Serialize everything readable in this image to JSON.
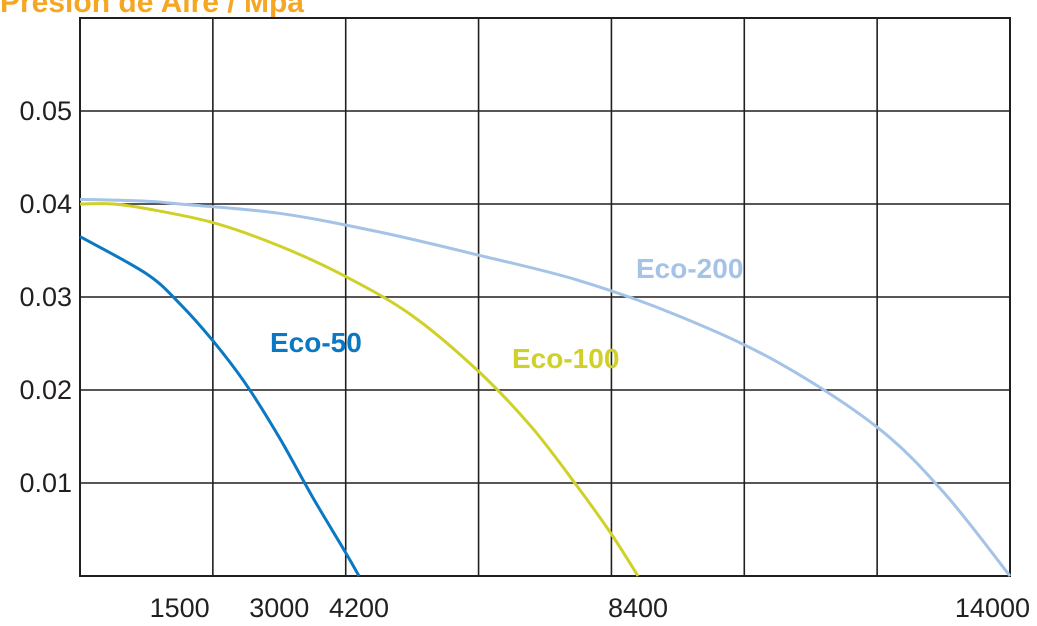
{
  "title": "Presión de Aire / Mpa",
  "chart_data": {
    "type": "line",
    "title": "Presión de Aire / Mpa",
    "xlabel": "",
    "ylabel": "",
    "xlim": [
      0,
      14000
    ],
    "ylim": [
      0,
      0.06
    ],
    "grid": true,
    "y_ticks": [
      "0.01",
      "0.02",
      "0.03",
      "0.04",
      "0.05"
    ],
    "x_ticks": [
      "1500",
      "3000",
      "4200",
      "8400",
      "14000"
    ],
    "series": [
      {
        "name": "Eco-50",
        "color": "#0a78c2",
        "x": [
          0,
          1000,
          1500,
          2000,
          2500,
          3000,
          3500,
          4000,
          4200
        ],
        "y": [
          0.0365,
          0.0325,
          0.0293,
          0.0253,
          0.0206,
          0.0149,
          0.0085,
          0.0025,
          0.0
        ]
      },
      {
        "name": "Eco-100",
        "color": "#cfd128",
        "x": [
          0,
          500,
          1000,
          2000,
          3000,
          4000,
          5000,
          6000,
          6800,
          7500,
          8000,
          8400
        ],
        "y": [
          0.04,
          0.04,
          0.0395,
          0.038,
          0.0355,
          0.0322,
          0.028,
          0.022,
          0.016,
          0.0095,
          0.0045,
          0.0
        ]
      },
      {
        "name": "Eco-200",
        "color": "#a4c3e7",
        "x": [
          0,
          1000,
          1500,
          3000,
          4500,
          6000,
          7500,
          9000,
          10500,
          12000,
          13000,
          14000
        ],
        "y": [
          0.0405,
          0.0403,
          0.04,
          0.039,
          0.037,
          0.0345,
          0.0318,
          0.028,
          0.023,
          0.016,
          0.009,
          0.0
        ]
      }
    ]
  }
}
